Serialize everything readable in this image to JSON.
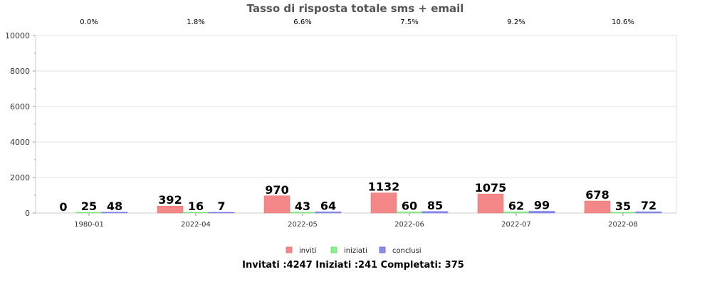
{
  "chart_data": {
    "type": "bar",
    "title": "Tasso di risposta totale sms + email",
    "categories": [
      "1980-01",
      "2022-04",
      "2022-05",
      "2022-06",
      "2022-07",
      "2022-08"
    ],
    "top_labels": [
      "0.0%",
      "1.8%",
      "6.6%",
      "7.5%",
      "9.2%",
      "10.6%"
    ],
    "series": [
      {
        "name": "inviti",
        "color": "#f48787",
        "stroke": "#e07070",
        "values": [
          0,
          392,
          970,
          1132,
          1075,
          678
        ]
      },
      {
        "name": "iniziati",
        "color": "#8ef08e",
        "stroke": "#6ad86a",
        "values": [
          25,
          16,
          43,
          60,
          62,
          35
        ]
      },
      {
        "name": "conclusi",
        "color": "#8a8aee",
        "stroke": "#6a6ae0",
        "values": [
          48,
          7,
          64,
          85,
          99,
          72
        ]
      }
    ],
    "ylim": [
      0,
      10000
    ],
    "yticks": [
      0,
      2000,
      4000,
      6000,
      8000,
      10000
    ],
    "grid": true,
    "legend_position": "bottom-center",
    "footer": "Invitati :4247 Iniziati :241 Completati: 375"
  }
}
